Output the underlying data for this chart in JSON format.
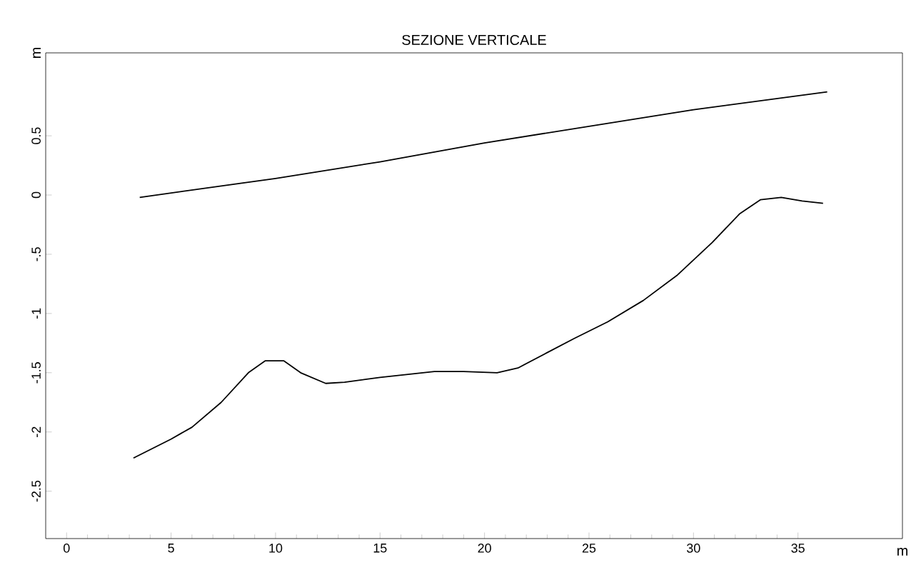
{
  "chart_data": {
    "type": "line",
    "title": "SEZIONE VERTICALE",
    "xlabel": "m",
    "ylabel": "m",
    "xlim": [
      -1,
      40
    ],
    "ylim": [
      -2.9,
      1.2
    ],
    "xticks": [
      0,
      5,
      10,
      15,
      20,
      25,
      30,
      35
    ],
    "yticks": [
      {
        "value": -2.5,
        "label": "-2.5"
      },
      -2,
      -1.5,
      -1,
      {
        "value": -0.5,
        "label": "-.5"
      },
      0,
      0.5
    ],
    "series": [
      {
        "color": "#000000",
        "x": [
          3.5,
          10,
          15,
          20,
          25,
          30,
          36.4
        ],
        "values": [
          -0.02,
          0.14,
          0.28,
          0.44,
          0.58,
          0.72,
          0.87
        ]
      },
      {
        "color": "#000000",
        "x": [
          3.2,
          5,
          6,
          7.4,
          8.7,
          9.5,
          10.4,
          11.2,
          12.4,
          13.3,
          15,
          17.6,
          19,
          20.6,
          21.6,
          23,
          24.3,
          25.9,
          27.6,
          29.2,
          30.9,
          32.2,
          33.2,
          34.2,
          35.2,
          36.2
        ],
        "values": [
          -2.22,
          -2.06,
          -1.96,
          -1.75,
          -1.5,
          -1.4,
          -1.4,
          -1.5,
          -1.59,
          -1.58,
          -1.54,
          -1.49,
          -1.49,
          -1.5,
          -1.46,
          -1.33,
          -1.21,
          -1.07,
          -0.89,
          -0.68,
          -0.4,
          -0.16,
          -0.04,
          -0.02,
          -0.05,
          -0.07
        ]
      }
    ]
  }
}
